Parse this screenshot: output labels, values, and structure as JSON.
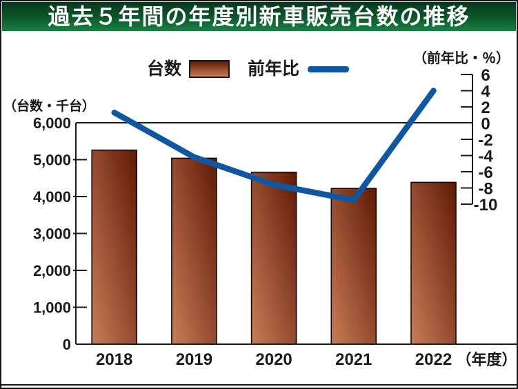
{
  "title": "過去５年間の年度別新車販売台数の推移",
  "legend": {
    "bar_label": "台数",
    "line_label": "前年比"
  },
  "axis_labels": {
    "left_unit": "（台数・千台）",
    "right_unit": "（前年比・％）",
    "x_suffix": "（年度）"
  },
  "chart_data": {
    "type": "bar+line",
    "title": "過去５年間の年度別新車販売台数の推移",
    "categories": [
      "2018",
      "2019",
      "2020",
      "2021",
      "2022"
    ],
    "series": [
      {
        "name": "台数",
        "chart": "bar",
        "unit": "千台",
        "values": [
          5260,
          5040,
          4660,
          4220,
          4385
        ]
      },
      {
        "name": "前年比",
        "chart": "line",
        "unit": "%",
        "values": [
          1.3,
          -4.2,
          -7.6,
          -9.5,
          4.0
        ]
      }
    ],
    "left_axis": {
      "label": "台数・千台",
      "min": 0,
      "max": 6000,
      "ticks": [
        {
          "label": "6,000",
          "value": 6000
        },
        {
          "label": "5,000",
          "value": 5000
        },
        {
          "label": "4,000",
          "value": 4000
        },
        {
          "label": "3,000",
          "value": 3000
        },
        {
          "label": "2,000",
          "value": 2000
        },
        {
          "label": "1,000",
          "value": 1000
        },
        {
          "label": "0",
          "value": 0
        }
      ]
    },
    "right_axis": {
      "label": "前年比・％",
      "min": -10,
      "max": 6,
      "ticks": [
        {
          "label": "6",
          "value": 6
        },
        {
          "label": "4",
          "value": 4
        },
        {
          "label": "2",
          "value": 2
        },
        {
          "label": "0",
          "value": 0
        },
        {
          "label": "-2",
          "value": -2
        },
        {
          "label": "-4",
          "value": -4
        },
        {
          "label": "-6",
          "value": -6
        },
        {
          "label": "-8",
          "value": -8
        },
        {
          "label": "-10",
          "value": -10
        }
      ]
    },
    "legend_position": "top",
    "grid": "only zero-percent top line and baseline",
    "colors": {
      "title_bg_top": "#063a1e",
      "title_bg_bottom": "#17813f",
      "title_text": "#ffffff",
      "bar_gradient_dark": "#5e1a04",
      "bar_gradient_light": "#c97d58",
      "bar_border": "#1d0400",
      "line": "#0f57a0",
      "axis": "#1a1a1a"
    }
  }
}
